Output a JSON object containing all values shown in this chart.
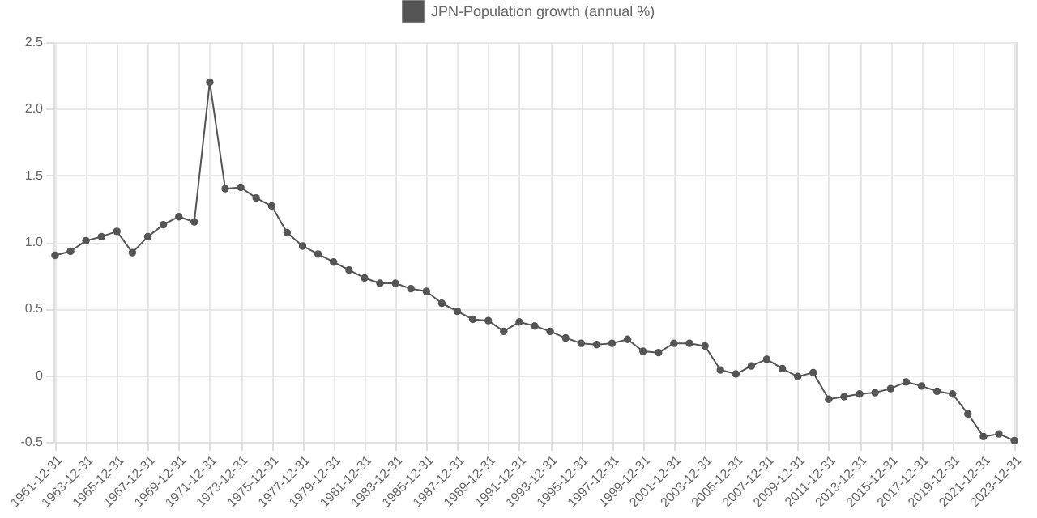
{
  "chart_data": {
    "type": "line",
    "categories": [
      "1961-12-31",
      null,
      "1963-12-31",
      null,
      "1965-12-31",
      null,
      "1967-12-31",
      null,
      "1969-12-31",
      null,
      "1971-12-31",
      null,
      "1973-12-31",
      null,
      "1975-12-31",
      null,
      "1977-12-31",
      null,
      "1979-12-31",
      null,
      "1981-12-31",
      null,
      "1983-12-31",
      null,
      "1985-12-31",
      null,
      "1987-12-31",
      null,
      "1989-12-31",
      null,
      "1991-12-31",
      null,
      "1993-12-31",
      null,
      "1995-12-31",
      null,
      "1997-12-31",
      null,
      "1999-12-31",
      null,
      "2001-12-31",
      null,
      "2003-12-31",
      null,
      "2005-12-31",
      null,
      "2007-12-31",
      null,
      "2009-12-31",
      null,
      "2011-12-31",
      null,
      "2013-12-31",
      null,
      "2015-12-31",
      null,
      "2017-12-31",
      null,
      "2019-12-31",
      null,
      "2021-12-31",
      null,
      "2023-12-31"
    ],
    "series": [
      {
        "name": "JPN-Population growth (annual %)",
        "color": "#555555",
        "values": [
          0.9,
          0.93,
          1.01,
          1.04,
          1.08,
          0.92,
          1.04,
          1.13,
          1.19,
          1.15,
          2.2,
          1.4,
          1.41,
          1.33,
          1.27,
          1.07,
          0.97,
          0.91,
          0.85,
          0.79,
          0.73,
          0.69,
          0.69,
          0.65,
          0.63,
          0.54,
          0.48,
          0.42,
          0.41,
          0.33,
          0.4,
          0.37,
          0.33,
          0.28,
          0.24,
          0.23,
          0.24,
          0.27,
          0.18,
          0.17,
          0.24,
          0.24,
          0.22,
          0.04,
          0.01,
          0.07,
          0.12,
          0.05,
          -0.01,
          0.02,
          -0.18,
          -0.16,
          -0.14,
          -0.13,
          -0.1,
          -0.05,
          -0.08,
          -0.12,
          -0.14,
          -0.29,
          -0.46,
          -0.44,
          -0.49
        ]
      }
    ],
    "ylim": [
      -0.5,
      2.5
    ],
    "yticks": [
      -0.5,
      0,
      0.5,
      {
        "value": 1,
        "label": "1.0"
      },
      1.5,
      {
        "value": 2,
        "label": "2.0"
      },
      2.5
    ],
    "grid": true,
    "legend": "top",
    "marker": "circle",
    "line_style": "solid"
  }
}
